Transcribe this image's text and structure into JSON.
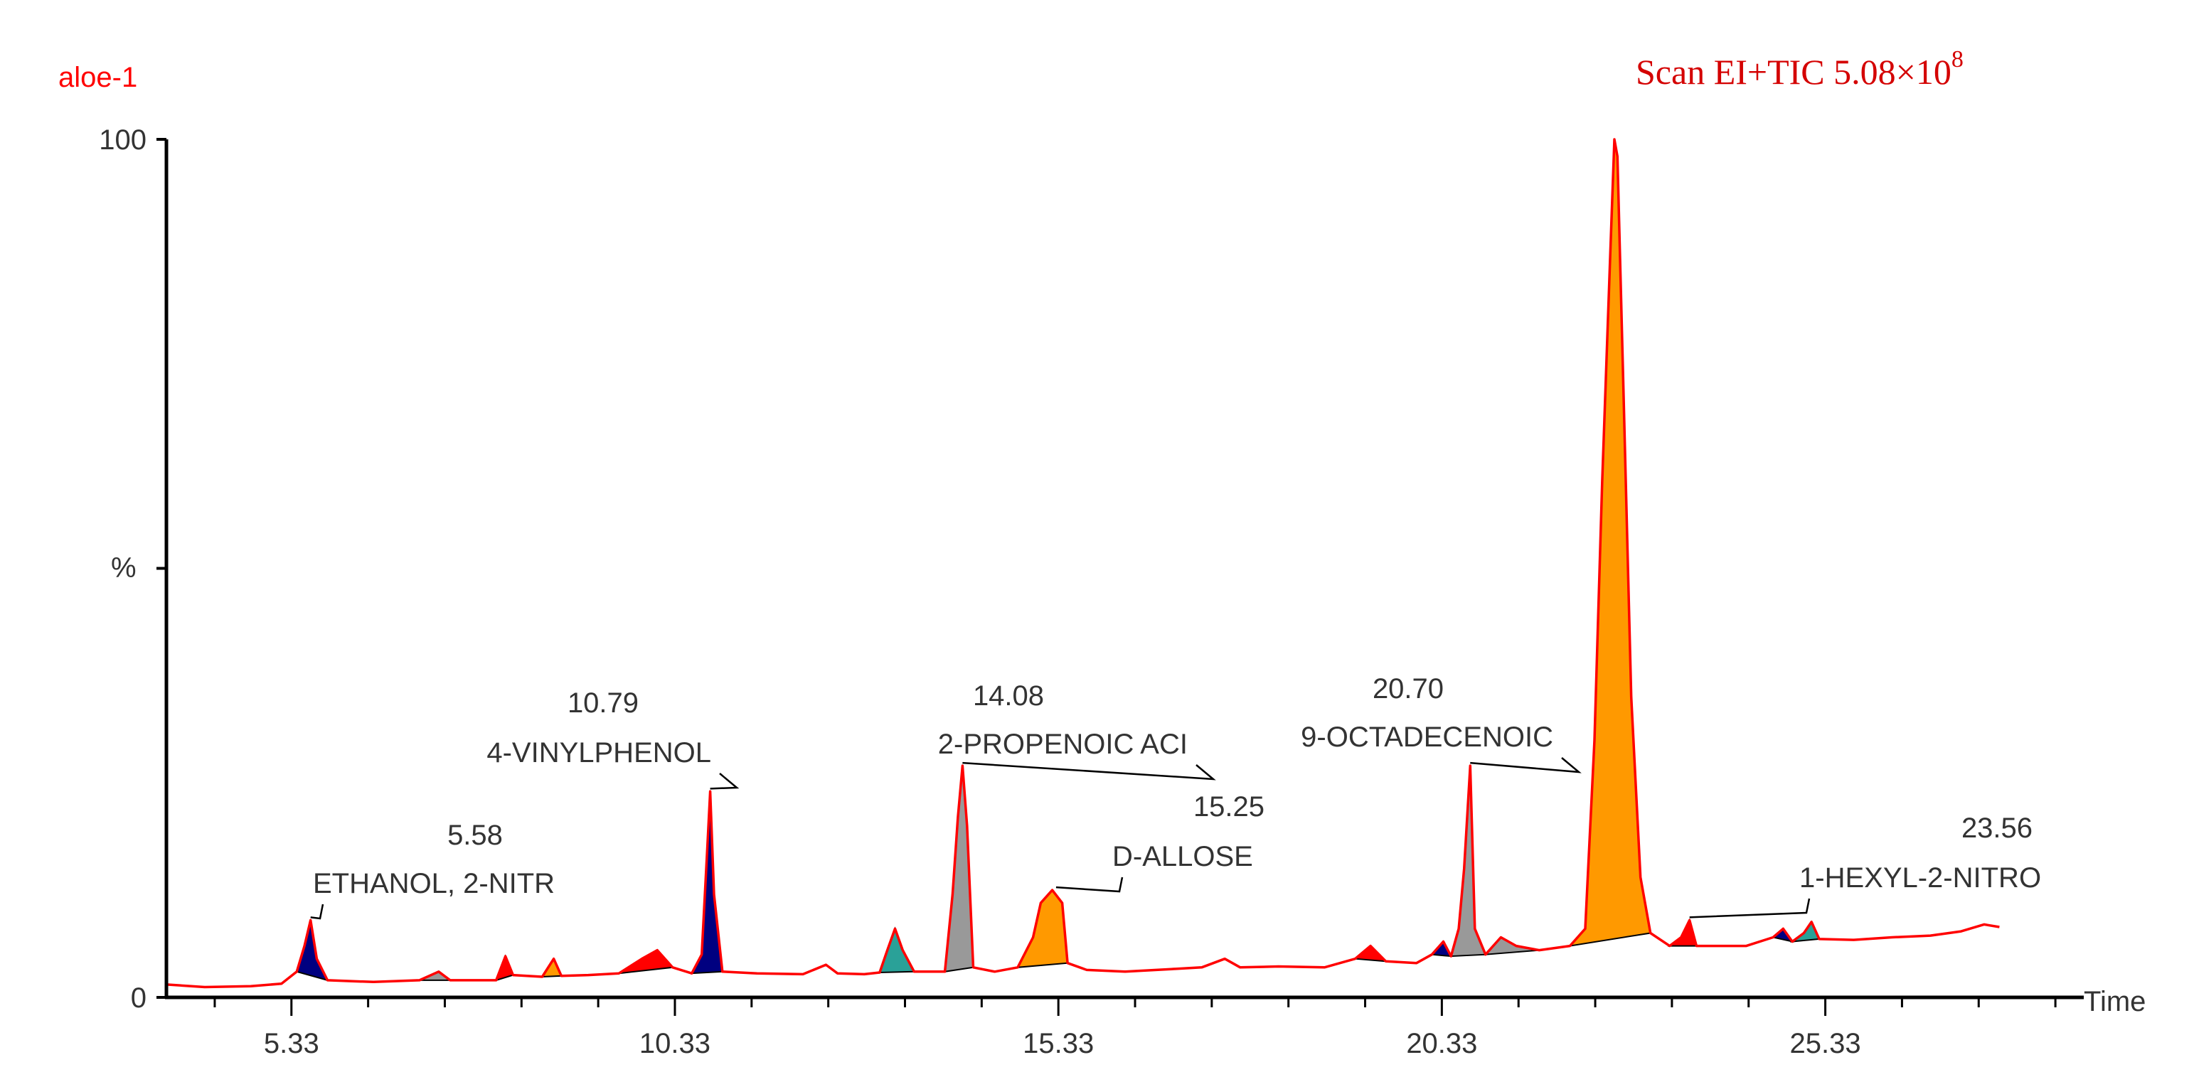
{
  "chart_data": {
    "type": "line",
    "sample_name": "aloe-1",
    "title_main": "Scan EI+TIC 5.08×10",
    "title_exponent": "8",
    "xlabel": "Time",
    "ylabel": "%",
    "xlim": [
      3.7,
      28.7
    ],
    "ylim": [
      0,
      100
    ],
    "x_ticks": [
      "5.33",
      "10.33",
      "15.33",
      "20.33",
      "25.33"
    ],
    "y_ticks": [
      "100",
      "0"
    ],
    "colors": {
      "trace": "#ff0000",
      "label_red": "#ff0000",
      "text": "#333333",
      "axis": "#000000",
      "fill_orange": "#ff9900",
      "fill_gray": "#999999",
      "fill_teal": "#2aa198",
      "fill_navy": "#000080",
      "fill_red": "#ff0000"
    },
    "peaks": [
      {
        "rt": 5.58,
        "label": "ETHANOL, 2-NITR",
        "intensity": 9
      },
      {
        "rt": 10.79,
        "label": "4-VINYLPHENOL",
        "intensity": 24
      },
      {
        "rt": 14.08,
        "label": "2-PROPENOIC ACI",
        "intensity": 26
      },
      {
        "rt": 15.25,
        "label": "D-ALLOSE",
        "intensity": 12
      },
      {
        "rt": 20.7,
        "label": "9-OCTADECENOIC",
        "intensity": 27
      },
      {
        "rt": 23.56,
        "label": "1-HEXYL-2-NITRO",
        "intensity": 9
      }
    ],
    "trace": [
      [
        3.7,
        1.5
      ],
      [
        4.2,
        1.2
      ],
      [
        4.8,
        1.3
      ],
      [
        5.2,
        1.6
      ],
      [
        5.4,
        3.0
      ],
      [
        5.5,
        6.0
      ],
      [
        5.58,
        9.0
      ],
      [
        5.66,
        4.5
      ],
      [
        5.8,
        2.0
      ],
      [
        6.4,
        1.8
      ],
      [
        7.0,
        2.0
      ],
      [
        7.25,
        3.0
      ],
      [
        7.4,
        2.0
      ],
      [
        8.0,
        2.0
      ],
      [
        8.12,
        4.8
      ],
      [
        8.22,
        2.6
      ],
      [
        8.6,
        2.4
      ],
      [
        8.75,
        4.5
      ],
      [
        8.85,
        2.5
      ],
      [
        9.2,
        2.6
      ],
      [
        9.6,
        2.8
      ],
      [
        9.9,
        4.5
      ],
      [
        10.1,
        5.5
      ],
      [
        10.3,
        3.5
      ],
      [
        10.55,
        2.8
      ],
      [
        10.68,
        5.0
      ],
      [
        10.75,
        17.0
      ],
      [
        10.79,
        24.0
      ],
      [
        10.84,
        12.0
      ],
      [
        10.95,
        3.0
      ],
      [
        11.4,
        2.8
      ],
      [
        12.0,
        2.7
      ],
      [
        12.3,
        3.8
      ],
      [
        12.45,
        2.8
      ],
      [
        12.8,
        2.7
      ],
      [
        13.0,
        2.9
      ],
      [
        13.1,
        5.5
      ],
      [
        13.2,
        8.0
      ],
      [
        13.3,
        5.5
      ],
      [
        13.45,
        3.0
      ],
      [
        13.85,
        3.0
      ],
      [
        13.95,
        12.0
      ],
      [
        14.02,
        21.0
      ],
      [
        14.08,
        27.0
      ],
      [
        14.14,
        20.0
      ],
      [
        14.22,
        3.5
      ],
      [
        14.5,
        3.0
      ],
      [
        14.8,
        3.5
      ],
      [
        15.0,
        7.0
      ],
      [
        15.1,
        11.0
      ],
      [
        15.25,
        12.5
      ],
      [
        15.38,
        11.0
      ],
      [
        15.45,
        4.0
      ],
      [
        15.7,
        3.2
      ],
      [
        16.2,
        3.0
      ],
      [
        16.8,
        3.3
      ],
      [
        17.2,
        3.5
      ],
      [
        17.5,
        4.5
      ],
      [
        17.7,
        3.5
      ],
      [
        18.2,
        3.6
      ],
      [
        18.8,
        3.5
      ],
      [
        19.2,
        4.5
      ],
      [
        19.4,
        6.0
      ],
      [
        19.6,
        4.2
      ],
      [
        20.0,
        4.0
      ],
      [
        20.2,
        5.0
      ],
      [
        20.35,
        6.5
      ],
      [
        20.45,
        4.8
      ],
      [
        20.55,
        8.0
      ],
      [
        20.62,
        15.0
      ],
      [
        20.7,
        27.0
      ],
      [
        20.76,
        8.0
      ],
      [
        20.9,
        5.0
      ],
      [
        21.1,
        7.0
      ],
      [
        21.3,
        6.0
      ],
      [
        21.6,
        5.5
      ],
      [
        22.0,
        6.0
      ],
      [
        22.2,
        8.0
      ],
      [
        22.32,
        30.0
      ],
      [
        22.42,
        60.0
      ],
      [
        22.52,
        85.0
      ],
      [
        22.58,
        100.0
      ],
      [
        22.62,
        98.0
      ],
      [
        22.7,
        70.0
      ],
      [
        22.8,
        35.0
      ],
      [
        22.92,
        14.0
      ],
      [
        23.05,
        7.5
      ],
      [
        23.3,
        6.0
      ],
      [
        23.45,
        7.0
      ],
      [
        23.56,
        9.0
      ],
      [
        23.65,
        6.0
      ],
      [
        23.9,
        6.0
      ],
      [
        24.3,
        6.0
      ],
      [
        24.65,
        7.0
      ],
      [
        24.78,
        8.0
      ],
      [
        24.9,
        6.5
      ],
      [
        25.05,
        7.5
      ],
      [
        25.15,
        8.8
      ],
      [
        25.25,
        6.8
      ],
      [
        25.7,
        6.7
      ],
      [
        26.2,
        7.0
      ],
      [
        26.7,
        7.2
      ],
      [
        27.1,
        7.7
      ],
      [
        27.4,
        8.5
      ],
      [
        27.6,
        8.2
      ]
    ],
    "fills": [
      {
        "x0": 5.4,
        "x1": 5.8,
        "color": "navy"
      },
      {
        "x0": 7.0,
        "x1": 7.4,
        "color": "gray"
      },
      {
        "x0": 8.0,
        "x1": 8.22,
        "color": "red"
      },
      {
        "x0": 8.6,
        "x1": 8.85,
        "color": "orange"
      },
      {
        "x0": 9.6,
        "x1": 10.3,
        "color": "red"
      },
      {
        "x0": 10.55,
        "x1": 10.95,
        "color": "navy"
      },
      {
        "x0": 13.0,
        "x1": 13.45,
        "color": "teal"
      },
      {
        "x0": 13.85,
        "x1": 14.22,
        "color": "gray"
      },
      {
        "x0": 14.8,
        "x1": 15.45,
        "color": "orange"
      },
      {
        "x0": 19.2,
        "x1": 19.6,
        "color": "red"
      },
      {
        "x0": 20.2,
        "x1": 20.45,
        "color": "navy"
      },
      {
        "x0": 20.45,
        "x1": 20.9,
        "color": "gray"
      },
      {
        "x0": 20.9,
        "x1": 21.6,
        "color": "gray"
      },
      {
        "x0": 22.0,
        "x1": 23.05,
        "color": "orange"
      },
      {
        "x0": 23.3,
        "x1": 23.65,
        "color": "red"
      },
      {
        "x0": 24.65,
        "x1": 24.9,
        "color": "navy"
      },
      {
        "x0": 24.9,
        "x1": 25.25,
        "color": "teal"
      }
    ]
  }
}
